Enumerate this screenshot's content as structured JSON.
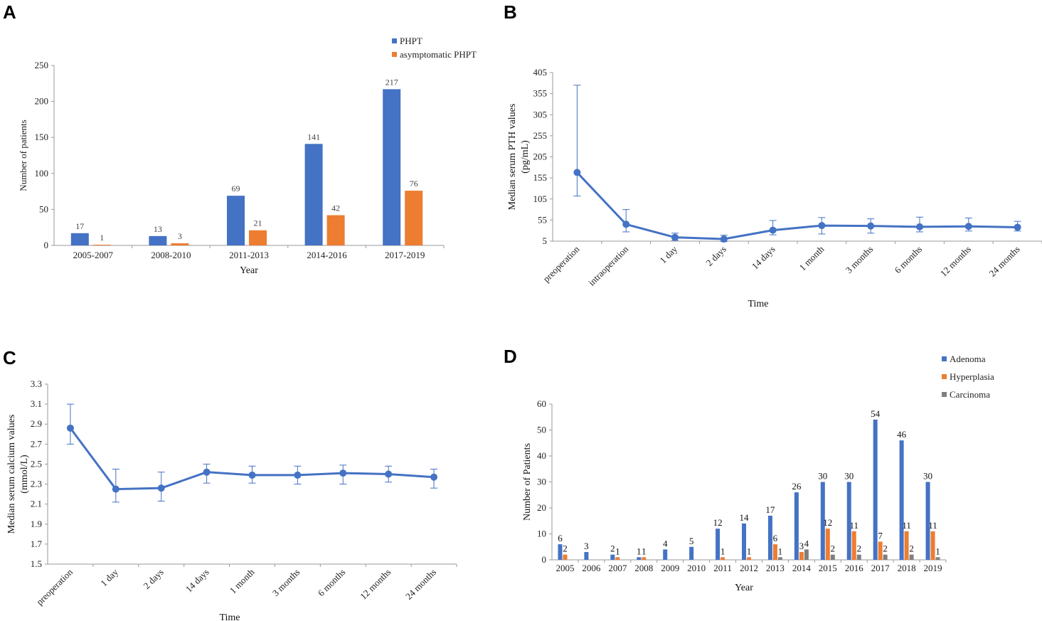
{
  "colors": {
    "blue": "#4472C4",
    "orange": "#ED7D31",
    "gray": "#7F7F7F",
    "line": "#4472C4"
  },
  "chart_data": [
    {
      "panel": "A",
      "type": "bar",
      "categories": [
        "2005-2007",
        "2008-2010",
        "2011-2013",
        "2014-2016",
        "2017-2019"
      ],
      "series": [
        {
          "name": "PHPT",
          "values": [
            17,
            13,
            69,
            141,
            217
          ]
        },
        {
          "name": "asymptomatic  PHPT",
          "values": [
            1,
            3,
            21,
            42,
            76
          ]
        }
      ],
      "xlabel": "Year",
      "ylabel": "Number of patients",
      "ylim": [
        0,
        250
      ],
      "yticks": [
        "0",
        "50",
        "100",
        "150",
        "200",
        "250"
      ],
      "legend_position": "top-right"
    },
    {
      "panel": "B",
      "type": "line",
      "categories": [
        "preoperation",
        "intraoperation",
        "1 day",
        "2 days",
        "14 days",
        "1 month",
        "3 months",
        "6 months",
        "12 months",
        "24 months"
      ],
      "values": [
        168,
        45,
        14,
        10,
        31,
        42,
        41,
        39,
        40,
        38
      ],
      "error_low": [
        112,
        27,
        7,
        4,
        20,
        22,
        24,
        27,
        29,
        29
      ],
      "error_high": [
        375,
        80,
        24,
        19,
        54,
        61,
        58,
        62,
        60,
        52
      ],
      "xlabel": "Time",
      "ylabel_lines": [
        "Median serum PTH values",
        "(pg/mL)"
      ],
      "ylim": [
        5,
        405
      ],
      "yticks": [
        "5",
        "55",
        "105",
        "155",
        "205",
        "255",
        "305",
        "355",
        "405"
      ]
    },
    {
      "panel": "C",
      "type": "line",
      "categories": [
        "preoperation",
        "1 day",
        "2 days",
        "14 days",
        "1 month",
        "3 months",
        "6 months",
        "12 months",
        "24 months"
      ],
      "values": [
        2.86,
        2.25,
        2.26,
        2.42,
        2.39,
        2.39,
        2.41,
        2.4,
        2.37
      ],
      "error_low": [
        2.7,
        2.12,
        2.13,
        2.31,
        2.31,
        2.3,
        2.3,
        2.32,
        2.26
      ],
      "error_high": [
        3.1,
        2.45,
        2.42,
        2.5,
        2.48,
        2.48,
        2.49,
        2.48,
        2.45
      ],
      "xlabel": "Time",
      "ylabel_lines": [
        "Median serum calcium values",
        "(mmol/L)"
      ],
      "ylim": [
        1.5,
        3.3
      ],
      "yticks": [
        "1.5",
        "1.7",
        "1.9",
        "2.1",
        "2.3",
        "2.5",
        "2.7",
        "2.9",
        "3.1",
        "3.3"
      ]
    },
    {
      "panel": "D",
      "type": "bar",
      "categories": [
        "2005",
        "2006",
        "2007",
        "2008",
        "2009",
        "2010",
        "2011",
        "2012",
        "2013",
        "2014",
        "2015",
        "2016",
        "2017",
        "2018",
        "2019"
      ],
      "series": [
        {
          "name": "Adenoma",
          "values": [
            6,
            3,
            2,
            1,
            4,
            5,
            12,
            14,
            17,
            26,
            30,
            30,
            54,
            46,
            30
          ]
        },
        {
          "name": "Hyperplasia",
          "values": [
            2,
            0,
            1,
            1,
            0,
            0,
            1,
            1,
            6,
            3,
            12,
            11,
            7,
            11,
            11
          ]
        },
        {
          "name": "Carcinoma",
          "values": [
            0,
            0,
            0,
            0,
            0,
            0,
            0,
            0,
            1,
            4,
            2,
            2,
            2,
            2,
            1
          ]
        }
      ],
      "xlabel": "Year",
      "ylabel": "Number of Patients",
      "ylim": [
        0,
        60
      ],
      "yticks": [
        "0",
        "10",
        "20",
        "30",
        "40",
        "50",
        "60"
      ],
      "legend_position": "top-right"
    }
  ]
}
